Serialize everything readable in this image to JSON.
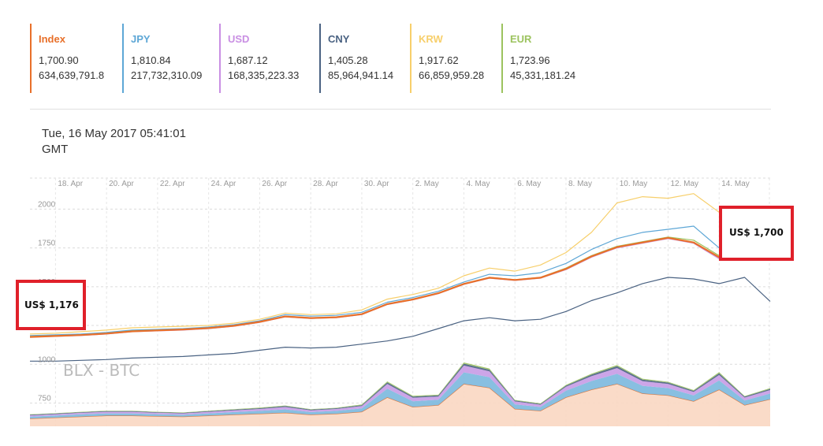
{
  "legend": [
    {
      "name": "Index",
      "price": "1,700.90",
      "volume": "634,639,791.8",
      "color": "#e8702a"
    },
    {
      "name": "JPY",
      "price": "1,810.84",
      "volume": "217,732,310.09",
      "color": "#5ea7d6"
    },
    {
      "name": "USD",
      "price": "1,687.12",
      "volume": "168,335,223.33",
      "color": "#c98fe3"
    },
    {
      "name": "CNY",
      "price": "1,405.28",
      "volume": "85,964,941.14",
      "color": "#4a6282"
    },
    {
      "name": "KRW",
      "price": "1,917.62",
      "volume": "66,859,959.28",
      "color": "#f7cf6b"
    },
    {
      "name": "EUR",
      "price": "1,723.96",
      "volume": "45,331,181.24",
      "color": "#9cc35f"
    }
  ],
  "timestamp": {
    "line1": "Tue, 16 May 2017 05:41:01",
    "line2": "GMT"
  },
  "watermark": "BLX - BTC",
  "annotations": {
    "start": "US$ 1,176",
    "end": "US$ 1,700"
  },
  "chart_data": {
    "type": "line",
    "x_ticks": [
      "18. Apr",
      "20. Apr",
      "22. Apr",
      "24. Apr",
      "26. Apr",
      "28. Apr",
      "30. Apr",
      "2. May",
      "4. May",
      "6. May",
      "8. May",
      "10. May",
      "12. May",
      "14. May"
    ],
    "y_ticks": [
      "750",
      "1000",
      "1250",
      "1500",
      "1750",
      "2000"
    ],
    "ylim": [
      600,
      2200
    ],
    "x": [
      "Apr 17",
      "Apr 18",
      "Apr 19",
      "Apr 20",
      "Apr 21",
      "Apr 22",
      "Apr 23",
      "Apr 24",
      "Apr 25",
      "Apr 26",
      "Apr 27",
      "Apr 28",
      "Apr 29",
      "Apr 30",
      "May 1",
      "May 2",
      "May 3",
      "May 4",
      "May 5",
      "May 6",
      "May 7",
      "May 8",
      "May 9",
      "May 10",
      "May 11",
      "May 12",
      "May 13",
      "May 14",
      "May 15",
      "May 16"
    ],
    "series": [
      {
        "name": "KRW",
        "color": "#f7cf6b",
        "values": [
          1195,
          1200,
          1210,
          1220,
          1235,
          1240,
          1245,
          1250,
          1265,
          1290,
          1330,
          1320,
          1325,
          1350,
          1420,
          1450,
          1490,
          1570,
          1620,
          1600,
          1640,
          1720,
          1850,
          2040,
          2080,
          2070,
          2100,
          1980,
          1960,
          1920
        ]
      },
      {
        "name": "JPY",
        "color": "#5ea7d6",
        "values": [
          1185,
          1190,
          1195,
          1205,
          1220,
          1225,
          1230,
          1240,
          1255,
          1280,
          1320,
          1310,
          1315,
          1335,
          1400,
          1430,
          1470,
          1530,
          1580,
          1570,
          1590,
          1650,
          1740,
          1810,
          1850,
          1870,
          1890,
          1750,
          1800,
          1810
        ]
      },
      {
        "name": "EUR",
        "color": "#9cc35f",
        "values": [
          1180,
          1185,
          1190,
          1200,
          1215,
          1220,
          1225,
          1235,
          1250,
          1275,
          1310,
          1300,
          1305,
          1325,
          1390,
          1420,
          1460,
          1520,
          1560,
          1545,
          1560,
          1620,
          1700,
          1760,
          1790,
          1820,
          1800,
          1700,
          1740,
          1724
        ]
      },
      {
        "name": "USD",
        "color": "#c98fe3",
        "values": [
          1175,
          1180,
          1185,
          1195,
          1210,
          1215,
          1220,
          1230,
          1245,
          1270,
          1305,
          1295,
          1300,
          1320,
          1385,
          1415,
          1455,
          1515,
          1555,
          1540,
          1555,
          1610,
          1690,
          1750,
          1780,
          1810,
          1780,
          1680,
          1720,
          1687
        ]
      },
      {
        "name": "Index",
        "color": "#e8702a",
        "values": [
          1176,
          1182,
          1188,
          1198,
          1212,
          1218,
          1224,
          1233,
          1248,
          1273,
          1308,
          1298,
          1303,
          1323,
          1388,
          1418,
          1458,
          1518,
          1558,
          1543,
          1558,
          1615,
          1695,
          1755,
          1785,
          1815,
          1785,
          1690,
          1725,
          1700
        ]
      },
      {
        "name": "CNY",
        "color": "#4a6282",
        "values": [
          1020,
          1020,
          1025,
          1030,
          1040,
          1045,
          1050,
          1060,
          1070,
          1090,
          1110,
          1105,
          1110,
          1130,
          1150,
          1180,
          1230,
          1280,
          1300,
          1280,
          1290,
          1340,
          1410,
          1460,
          1520,
          1560,
          1550,
          1520,
          1560,
          1405
        ]
      }
    ],
    "volume_series": [
      {
        "name": "Index",
        "color": "#f9d7c2",
        "values": [
          40,
          45,
          50,
          55,
          55,
          52,
          50,
          55,
          60,
          65,
          70,
          60,
          65,
          75,
          150,
          100,
          110,
          220,
          200,
          90,
          80,
          150,
          190,
          220,
          170,
          160,
          130,
          190,
          110,
          140
        ]
      },
      {
        "name": "JPY",
        "color": "#7bb8de",
        "values": [
          10,
          11,
          12,
          12,
          12,
          11,
          10,
          12,
          14,
          15,
          18,
          14,
          15,
          18,
          45,
          30,
          28,
          60,
          55,
          24,
          20,
          35,
          45,
          52,
          40,
          38,
          30,
          48,
          24,
          30
        ]
      },
      {
        "name": "USD",
        "color": "#c79be6",
        "values": [
          7,
          7,
          8,
          8,
          8,
          7,
          7,
          8,
          9,
          10,
          12,
          9,
          10,
          12,
          25,
          18,
          16,
          35,
          30,
          15,
          12,
          20,
          25,
          30,
          24,
          22,
          18,
          28,
          15,
          18
        ]
      },
      {
        "name": "CNY",
        "color": "#4a6282",
        "values": [
          3,
          3,
          3,
          4,
          4,
          3,
          3,
          4,
          4,
          4,
          5,
          4,
          4,
          5,
          8,
          6,
          6,
          10,
          9,
          5,
          4,
          6,
          8,
          10,
          8,
          7,
          6,
          9,
          5,
          6
        ]
      },
      {
        "name": "EUR",
        "color": "#9cc35f",
        "values": [
          2,
          2,
          2,
          2,
          2,
          2,
          2,
          2,
          2,
          3,
          3,
          2,
          2,
          3,
          5,
          4,
          4,
          6,
          6,
          3,
          3,
          4,
          5,
          6,
          5,
          4,
          4,
          6,
          3,
          4
        ]
      }
    ],
    "grid": true
  }
}
